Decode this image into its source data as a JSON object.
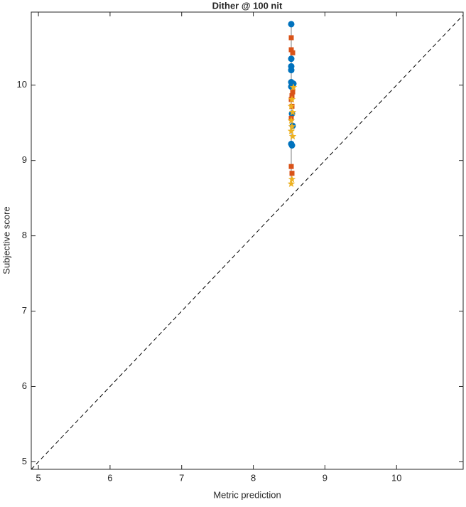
{
  "chart_data": {
    "type": "scatter",
    "title": "Dither @ 100 nit",
    "xlabel": "Metric prediction",
    "ylabel": "Subjective score",
    "xlim": [
      4.9,
      10.93
    ],
    "ylim": [
      4.9,
      10.97
    ],
    "xticks": [
      5,
      6,
      7,
      8,
      9,
      10
    ],
    "yticks": [
      5,
      6,
      7,
      8,
      9,
      10
    ],
    "series": [
      {
        "marker": "circle",
        "color": "#0072bd",
        "x": [
          8.53,
          8.53,
          8.53,
          8.53,
          8.53,
          8.56,
          8.53,
          8.54,
          8.55,
          8.53,
          8.54
        ],
        "values": [
          10.81,
          10.35,
          10.25,
          10.2,
          10.04,
          10.02,
          9.98,
          9.62,
          9.46,
          9.22,
          9.2
        ]
      },
      {
        "marker": "square",
        "color": "#d95319",
        "x": [
          8.53,
          8.53,
          8.55,
          8.55,
          8.54,
          8.53,
          8.54,
          8.53,
          8.53,
          8.54
        ],
        "values": [
          10.63,
          10.47,
          10.43,
          9.91,
          9.86,
          9.81,
          9.72,
          9.56,
          8.92,
          8.83
        ]
      },
      {
        "marker": "star",
        "color": "#edb120",
        "x": [
          8.56,
          8.54,
          8.53,
          8.55,
          8.53,
          8.54,
          8.53,
          8.55,
          8.54,
          8.53
        ],
        "values": [
          9.97,
          9.81,
          9.72,
          9.64,
          9.53,
          9.45,
          9.39,
          9.32,
          8.75,
          8.69
        ]
      }
    ]
  }
}
